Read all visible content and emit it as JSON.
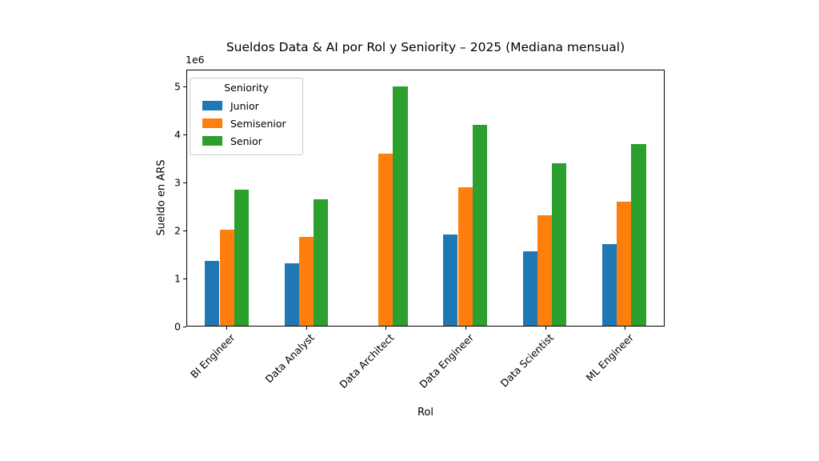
{
  "chart_data": {
    "type": "bar",
    "title": "Sueldos Data & AI por Rol y Seniority – 2025 (Mediana mensual)",
    "xlabel": "Rol",
    "ylabel": "Sueldo en ARS",
    "y_offset_text": "1e6",
    "categories": [
      "BI Engineer",
      "Data Analyst",
      "Data Architect",
      "Data Engineer",
      "Data Scientist",
      "ML Engineer"
    ],
    "series": [
      {
        "name": "Junior",
        "color": "#1f77b4",
        "values": [
          1350000,
          1300000,
          0,
          1900000,
          1550000,
          1700000
        ]
      },
      {
        "name": "Semisenior",
        "color": "#ff7f0e",
        "values": [
          2000000,
          1850000,
          3600000,
          2900000,
          2300000,
          2600000
        ]
      },
      {
        "name": "Senior",
        "color": "#2ca02c",
        "values": [
          2850000,
          2650000,
          5000000,
          4200000,
          3400000,
          3800000
        ]
      }
    ],
    "legend": {
      "title": "Seniority",
      "position": "upper left",
      "entries": [
        "Junior",
        "Semisenior",
        "Senior"
      ]
    },
    "y_ticks": [
      0,
      1000000,
      2000000,
      3000000,
      4000000,
      5000000
    ],
    "y_tick_labels": [
      "0",
      "1",
      "2",
      "3",
      "4",
      "5"
    ],
    "ylim": [
      0,
      5350000
    ],
    "grid": false,
    "background_color": "#ffffff",
    "spine_color": "#000000"
  }
}
